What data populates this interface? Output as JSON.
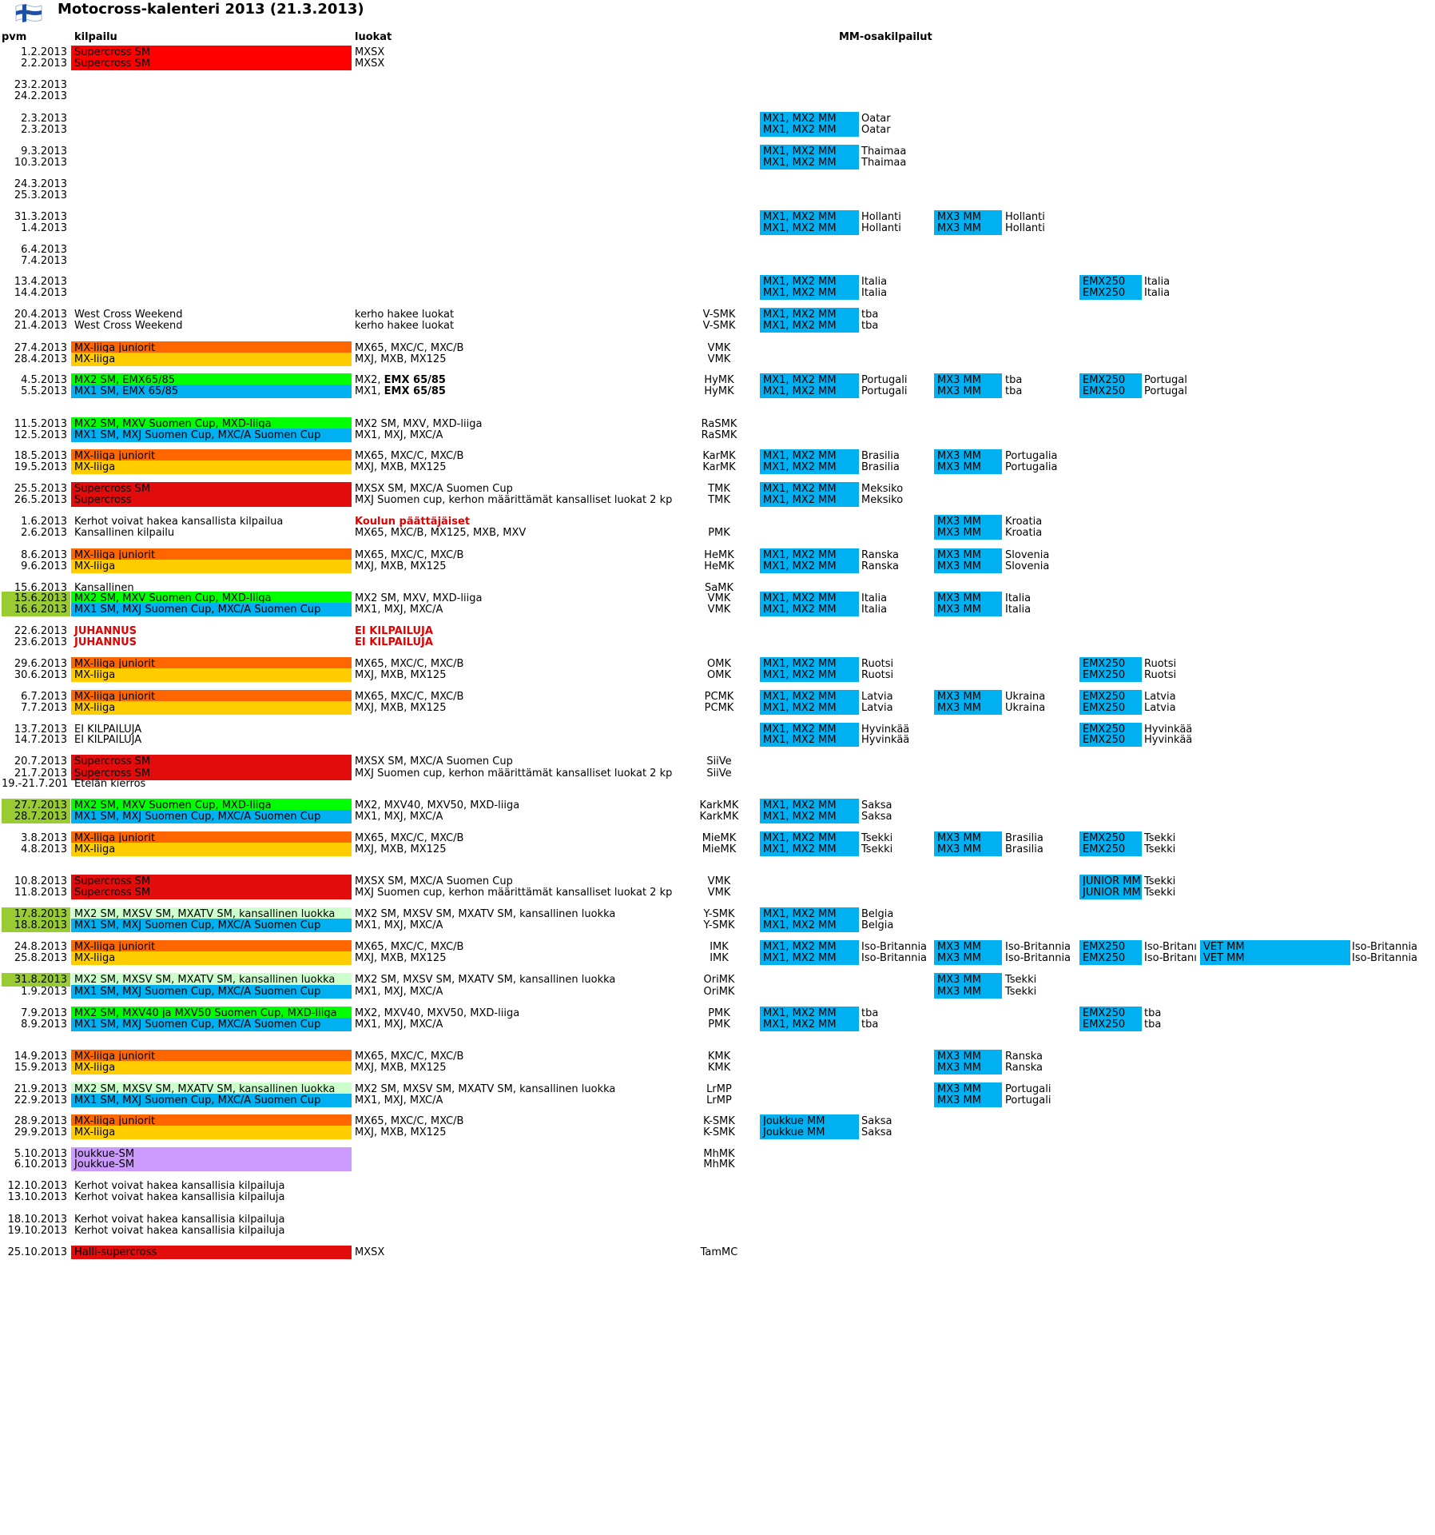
{
  "title": "Motocross-kalenteri 2013 (21.3.2013)",
  "headers": {
    "pvm": "pvm",
    "kilpailu": "kilpailu",
    "luokat": "luokat",
    "mm": "MM-osakilpailut"
  },
  "colors": {
    "supercross": "#ff0000",
    "supercross_dark": "#e30c0c",
    "juniorit": "#ff6600",
    "mxliiga": "#ffcc00",
    "green": "#00ff00",
    "blue": "#00b0f0",
    "mm": "#00b0f0",
    "lightgreen": "#ccffcc",
    "datelime": "#99cc33",
    "purple": "#cc99ff"
  },
  "rows": [
    {
      "date": "1.2.2013",
      "comp": "Supercross SM",
      "comp_color": "supercross",
      "classes": "MXSX"
    },
    {
      "date": "2.2.2013",
      "comp": "Supercross SM",
      "comp_color": "supercross",
      "classes": "MXSX"
    },
    {
      "date": "23.2.2013"
    },
    {
      "date": "24.2.2013"
    },
    {
      "date": "2.3.2013",
      "mm1": "MX1, MX2 MM",
      "mm1c": "Oatar"
    },
    {
      "date": "2.3.2013",
      "mm1": "MX1, MX2 MM",
      "mm1c": "Oatar"
    },
    {
      "date": "9.3.2013",
      "mm1": "MX1, MX2 MM",
      "mm1c": "Thaimaa"
    },
    {
      "date": "10.3.2013",
      "mm1": "MX1, MX2 MM",
      "mm1c": "Thaimaa"
    },
    {
      "date": "24.3.2013"
    },
    {
      "date": "25.3.2013"
    },
    {
      "date": "31.3.2013",
      "mm1": "MX1, MX2 MM",
      "mm1c": "Hollanti",
      "mm2": "MX3 MM",
      "mm2c": "Hollanti"
    },
    {
      "date": "1.4.2013",
      "mm1": "MX1, MX2 MM",
      "mm1c": "Hollanti",
      "mm2": "MX3 MM",
      "mm2c": "Hollanti"
    },
    {
      "date": "6.4.2013"
    },
    {
      "date": "7.4.2013"
    },
    {
      "date": "13.4.2013",
      "mm1": "MX1, MX2 MM",
      "mm1c": "Italia",
      "mm3": "EMX250",
      "mm3c": "Italia"
    },
    {
      "date": "14.4.2013",
      "mm1": "MX1, MX2 MM",
      "mm1c": "Italia",
      "mm3": "EMX250",
      "mm3c": "Italia"
    },
    {
      "date": "20.4.2013",
      "comp": "West Cross Weekend",
      "classes": "kerho hakee luokat",
      "club": "V-SMK",
      "mm1": "MX1, MX2 MM",
      "mm1c": "tba"
    },
    {
      "date": "21.4.2013",
      "comp": "West Cross Weekend",
      "classes": "kerho hakee luokat",
      "club": "V-SMK",
      "mm1": "MX1, MX2 MM",
      "mm1c": "tba"
    },
    {
      "date": "27.4.2013",
      "comp": "MX-liiga juniorit",
      "comp_color": "juniorit",
      "classes": "MX65, MXC/C, MXC/B",
      "club": "VMK"
    },
    {
      "date": "28.4.2013",
      "comp": "MX-liiga",
      "comp_color": "mxliiga",
      "classes": "MXJ, MXB, MX125",
      "club": "VMK"
    },
    {
      "date": "4.5.2013",
      "comp": "MX2 SM, EMX65/85",
      "comp_color": "green",
      "classes": "MX2,",
      "classes_bold": "EMX 65/85",
      "club": "HyMK",
      "mm1": "MX1, MX2 MM",
      "mm1c": "Portugali",
      "mm2": "MX3 MM",
      "mm2c": "tba",
      "mm3": "EMX250",
      "mm3c": "Portugal"
    },
    {
      "date": "5.5.2013",
      "comp": "MX1 SM, EMX 65/85",
      "comp_color": "blue",
      "classes": "MX1,",
      "classes_bold": "EMX 65/85",
      "club": "HyMK",
      "mm1": "MX1, MX2 MM",
      "mm1c": "Portugali",
      "mm2": "MX3 MM",
      "mm2c": "tba",
      "mm3": "EMX250",
      "mm3c": "Portugal"
    },
    {
      "date": "11.5.2013",
      "comp": "MX2 SM, MXV Suomen Cup, MXD-liiga",
      "comp_color": "green",
      "classes": "MX2 SM, MXV, MXD-liiga",
      "club": "RaSMK"
    },
    {
      "date": "12.5.2013",
      "comp": "MX1 SM, MXJ Suomen Cup, MXC/A Suomen Cup",
      "comp_color": "blue",
      "classes": "MX1, MXJ, MXC/A",
      "club": "RaSMK"
    },
    {
      "date": "18.5.2013",
      "comp": "MX-liiga juniorit",
      "comp_color": "juniorit",
      "classes": "MX65, MXC/C, MXC/B",
      "club": "KarMK",
      "mm1": "MX1, MX2 MM",
      "mm1c": "Brasilia",
      "mm2": "MX3 MM",
      "mm2c": "Portugalia"
    },
    {
      "date": "19.5.2013",
      "comp": "MX-liiga",
      "comp_color": "mxliiga",
      "classes": "MXJ, MXB, MX125",
      "club": "KarMK",
      "mm1": "MX1, MX2 MM",
      "mm1c": "Brasilia",
      "mm2": "MX3 MM",
      "mm2c": "Portugalia"
    },
    {
      "date": "25.5.2013",
      "comp": "Supercross SM",
      "comp_color": "supercross_dark",
      "classes": "MXSX SM, MXC/A Suomen Cup",
      "club": "TMK",
      "mm1": "MX1, MX2 MM",
      "mm1c": "Meksiko"
    },
    {
      "date": "26.5.2013",
      "comp": "Supercross",
      "comp_color": "supercross_dark",
      "classes": "MXJ Suomen cup, kerhon määrittämät kansalliset luokat 2 kp",
      "club": "TMK",
      "mm1": "MX1, MX2 MM",
      "mm1c": "Meksiko"
    },
    {
      "date": "1.6.2013",
      "comp": "Kerhot voivat hakea kansallista kilpailua",
      "classes_red": "Koulun päättäjäiset",
      "mm2": "MX3 MM",
      "mm2c": "Kroatia"
    },
    {
      "date": "2.6.2013",
      "comp": "Kansallinen kilpailu",
      "classes": "MX65, MXC/B, MX125, MXB, MXV",
      "club": "PMK",
      "mm2": "MX3 MM",
      "mm2c": "Kroatia"
    },
    {
      "date": "8.6.2013",
      "comp": "MX-liiga juniorit",
      "comp_color": "juniorit",
      "classes": "MX65, MXC/C, MXC/B",
      "club": "HeMK",
      "mm1": "MX1, MX2 MM",
      "mm1c": "Ranska",
      "mm2": "MX3 MM",
      "mm2c": "Slovenia"
    },
    {
      "date": "9.6.2013",
      "comp": "MX-liiga",
      "comp_color": "mxliiga",
      "classes": "MXJ, MXB, MX125",
      "club": "HeMK",
      "mm1": "MX1, MX2 MM",
      "mm1c": "Ranska",
      "mm2": "MX3 MM",
      "mm2c": "Slovenia"
    },
    {
      "date": "15.6.2013",
      "comp": "Kansallinen",
      "club": "SaMK"
    },
    {
      "date": "15.6.2013",
      "date_color": "datelime",
      "comp": "MX2 SM, MXV Suomen Cup, MXD-liiga",
      "comp_color": "green",
      "classes": "MX2 SM, MXV, MXD-liiga",
      "club": "VMK",
      "mm1": "MX1, MX2 MM",
      "mm1c": "Italia",
      "mm2": "MX3 MM",
      "mm2c": "Italia"
    },
    {
      "date": "16.6.2013",
      "date_color": "datelime",
      "comp": "MX1 SM, MXJ Suomen Cup, MXC/A Suomen Cup",
      "comp_color": "blue",
      "classes": "MX1, MXJ, MXC/A",
      "club": "VMK",
      "mm1": "MX1, MX2 MM",
      "mm1c": "Italia",
      "mm2": "MX3 MM",
      "mm2c": "Italia"
    },
    {
      "date": "22.6.2013",
      "comp_red": "JUHANNUS",
      "classes_red": "EI KILPAILUJA"
    },
    {
      "date": "23.6.2013",
      "comp_red": "JUHANNUS",
      "classes_red": "EI KILPAILUJA"
    },
    {
      "date": "29.6.2013",
      "comp": "MX-liiga juniorit",
      "comp_color": "juniorit",
      "classes": "MX65, MXC/C, MXC/B",
      "club": "OMK",
      "mm1": "MX1, MX2 MM",
      "mm1c": "Ruotsi",
      "mm3": "EMX250",
      "mm3c": "Ruotsi"
    },
    {
      "date": "30.6.2013",
      "comp": "MX-liiga",
      "comp_color": "mxliiga",
      "classes": "MXJ, MXB, MX125",
      "club": "OMK",
      "mm1": "MX1, MX2 MM",
      "mm1c": "Ruotsi",
      "mm3": "EMX250",
      "mm3c": "Ruotsi"
    },
    {
      "date": "6.7.2013",
      "comp": "MX-liiga juniorit",
      "comp_color": "juniorit",
      "classes": "MX65, MXC/C, MXC/B",
      "club": "PCMK",
      "mm1": "MX1, MX2 MM",
      "mm1c": "Latvia",
      "mm2": "MX3 MM",
      "mm2c": "Ukraina",
      "mm3": "EMX250",
      "mm3c": "Latvia"
    },
    {
      "date": "7.7.2013",
      "comp": "MX-liiga",
      "comp_color": "mxliiga",
      "classes": "MXJ, MXB, MX125",
      "club": "PCMK",
      "mm1": "MX1, MX2 MM",
      "mm1c": "Latvia",
      "mm2": "MX3 MM",
      "mm2c": "Ukraina",
      "mm3": "EMX250",
      "mm3c": "Latvia"
    },
    {
      "date": "13.7.2013",
      "comp": "EI KILPAILUJA",
      "mm1": "MX1, MX2 MM",
      "mm1c": "Hyvinkää",
      "mm3": "EMX250",
      "mm3c": "Hyvinkää"
    },
    {
      "date": "14.7.2013",
      "comp": "EI KILPAILUJA",
      "mm1": "MX1, MX2 MM",
      "mm1c": "Hyvinkää",
      "mm3": "EMX250",
      "mm3c": "Hyvinkää"
    },
    {
      "date": "20.7.2013",
      "comp": "Supercross SM",
      "comp_color": "supercross_dark",
      "classes": "MXSX SM, MXC/A Suomen Cup",
      "club": "SiiVe"
    },
    {
      "date": "21.7.2013",
      "comp": "Supercross SM",
      "comp_color": "supercross_dark",
      "classes": "MXJ Suomen cup, kerhon määrittämät kansalliset luokat 2 kp",
      "club": "SiiVe"
    },
    {
      "date": "19.-21.7.201",
      "comp": "Etelän kierros"
    },
    {
      "date": "27.7.2013",
      "date_color": "datelime",
      "comp": "MX2 SM, MXV Suomen Cup, MXD-liiga",
      "comp_color": "green",
      "classes": "MX2, MXV40, MXV50, MXD-liiga",
      "club": "KarkMK",
      "mm1": "MX1, MX2 MM",
      "mm1c": "Saksa"
    },
    {
      "date": "28.7.2013",
      "date_color": "datelime",
      "comp": "MX1 SM, MXJ Suomen Cup, MXC/A Suomen Cup",
      "comp_color": "blue",
      "classes": "MX1, MXJ, MXC/A",
      "club": "KarkMK",
      "mm1": "MX1, MX2 MM",
      "mm1c": "Saksa"
    },
    {
      "date": "3.8.2013",
      "comp": "MX-liiga juniorit",
      "comp_color": "juniorit",
      "classes": "MX65, MXC/C, MXC/B",
      "club": "MieMK",
      "mm1": "MX1, MX2 MM",
      "mm1c": "Tsekki",
      "mm2": "MX3 MM",
      "mm2c": "Brasilia",
      "mm3": "EMX250",
      "mm3c": "Tsekki"
    },
    {
      "date": "4.8.2013",
      "comp": "MX-liiga",
      "comp_color": "mxliiga",
      "classes": "MXJ, MXB, MX125",
      "club": "MieMK",
      "mm1": "MX1, MX2 MM",
      "mm1c": "Tsekki",
      "mm2": "MX3 MM",
      "mm2c": "Brasilia",
      "mm3": "EMX250",
      "mm3c": "Tsekki"
    },
    {
      "date": "10.8.2013",
      "comp": "Supercross SM",
      "comp_color": "supercross_dark",
      "classes": "MXSX SM, MXC/A Suomen Cup",
      "club": "VMK",
      "mm3": "JUNIOR MM",
      "mm3c": "Tsekki"
    },
    {
      "date": "11.8.2013",
      "comp": "Supercross SM",
      "comp_color": "supercross_dark",
      "classes": "MXJ Suomen cup, kerhon määrittämät kansalliset luokat 2 kp",
      "club": "VMK",
      "mm3": "JUNIOR MM",
      "mm3c": "Tsekki"
    },
    {
      "date": "17.8.2013",
      "date_color": "datelime",
      "comp": "MX2 SM, MXSV SM, MXATV SM, kansallinen luokka",
      "comp_color": "lightgreen",
      "classes": "MX2 SM, MXSV SM, MXATV SM, kansallinen luokka",
      "club": "Y-SMK",
      "mm1": "MX1, MX2 MM",
      "mm1c": "Belgia"
    },
    {
      "date": "18.8.2013",
      "date_color": "datelime",
      "comp": "MX1 SM, MXJ Suomen Cup, MXC/A Suomen Cup",
      "comp_color": "blue",
      "classes": "MX1, MXJ, MXC/A",
      "club": "Y-SMK",
      "mm1": "MX1, MX2 MM",
      "mm1c": "Belgia"
    },
    {
      "date": "24.8.2013",
      "comp": "MX-liiga juniorit",
      "comp_color": "juniorit",
      "classes": "MX65, MXC/C, MXC/B",
      "club": "IMK",
      "mm1": "MX1, MX2 MM",
      "mm1c": "Iso-Britannia",
      "mm2": "MX3 MM",
      "mm2c": "Iso-Britannia",
      "mm3": "EMX250",
      "mm3c": "Iso-Britanı",
      "mm4": "VET MM",
      "mm4c": "Iso-Britannia"
    },
    {
      "date": "25.8.2013",
      "comp": "MX-liiga",
      "comp_color": "mxliiga",
      "classes": "MXJ, MXB, MX125",
      "club": "IMK",
      "mm1": "MX1, MX2 MM",
      "mm1c": "Iso-Britannia",
      "mm2": "MX3 MM",
      "mm2c": "Iso-Britannia",
      "mm3": "EMX250",
      "mm3c": "Iso-Britanı",
      "mm4": "VET MM",
      "mm4c": "Iso-Britannia"
    },
    {
      "date": "31.8.2013",
      "date_color": "datelime",
      "comp": "MX2 SM, MXSV SM, MXATV SM, kansallinen luokka",
      "comp_color": "lightgreen",
      "classes": "MX2 SM, MXSV SM, MXATV SM, kansallinen luokka",
      "club": "OriMK",
      "mm2": "MX3 MM",
      "mm2c": "Tsekki"
    },
    {
      "date": "1.9.2013",
      "comp": "MX1 SM, MXJ Suomen Cup, MXC/A Suomen Cup",
      "comp_color": "blue",
      "classes": "MX1, MXJ, MXC/A",
      "club": "OriMK",
      "mm2": "MX3 MM",
      "mm2c": "Tsekki"
    },
    {
      "date": "7.9.2013",
      "comp": "MX2 SM, MXV40 ja MXV50 Suomen Cup, MXD-liiga",
      "comp_color": "green",
      "classes": "MX2, MXV40, MXV50, MXD-liiga",
      "club": "PMK",
      "mm1": "MX1, MX2 MM",
      "mm1c": "tba",
      "mm3": "EMX250",
      "mm3c": "tba"
    },
    {
      "date": "8.9.2013",
      "comp": "MX1 SM, MXJ Suomen Cup, MXC/A Suomen Cup",
      "comp_color": "blue",
      "classes": "MX1, MXJ, MXC/A",
      "club": "PMK",
      "mm1": "MX1, MX2 MM",
      "mm1c": "tba",
      "mm3": "EMX250",
      "mm3c": "tba"
    },
    {
      "date": "14.9.2013",
      "comp": "MX-liiga juniorit",
      "comp_color": "juniorit",
      "classes": "MX65, MXC/C, MXC/B",
      "club": "KMK",
      "mm2": "MX3 MM",
      "mm2c": "Ranska"
    },
    {
      "date": "15.9.2013",
      "comp": "MX-liiga",
      "comp_color": "mxliiga",
      "classes": "MXJ, MXB, MX125",
      "club": "KMK",
      "mm2": "MX3 MM",
      "mm2c": "Ranska"
    },
    {
      "date": "21.9.2013",
      "comp": "MX2 SM, MXSV SM, MXATV SM, kansallinen luokka",
      "comp_color": "lightgreen",
      "classes": "MX2 SM, MXSV SM, MXATV SM, kansallinen luokka",
      "club": "LrMP",
      "mm2": "MX3 MM",
      "mm2c": "Portugali"
    },
    {
      "date": "22.9.2013",
      "comp": "MX1 SM, MXJ Suomen Cup, MXC/A Suomen Cup",
      "comp_color": "blue",
      "classes": "MX1, MXJ, MXC/A",
      "club": "LrMP",
      "mm2": "MX3 MM",
      "mm2c": "Portugali"
    },
    {
      "date": "28.9.2013",
      "comp": "MX-liiga juniorit",
      "comp_color": "juniorit",
      "classes": "MX65, MXC/C, MXC/B",
      "club": "K-SMK",
      "mm1": "Joukkue MM",
      "mm1c": "Saksa"
    },
    {
      "date": "29.9.2013",
      "comp": "MX-liiga",
      "comp_color": "mxliiga",
      "classes": "MXJ, MXB, MX125",
      "club": "K-SMK",
      "mm1": "Joukkue MM",
      "mm1c": "Saksa"
    },
    {
      "date": "5.10.2013",
      "comp": "Joukkue-SM",
      "comp_color": "purple",
      "club": "MhMK"
    },
    {
      "date": "6.10.2013",
      "comp": "Joukkue-SM",
      "comp_color": "purple",
      "club": "MhMK"
    },
    {
      "date": "12.10.2013",
      "comp": "Kerhot voivat hakea kansallisia kilpailuja"
    },
    {
      "date": "13.10.2013",
      "comp": "Kerhot voivat hakea kansallisia kilpailuja"
    },
    {
      "date": "18.10.2013",
      "comp": "Kerhot voivat hakea kansallisia kilpailuja"
    },
    {
      "date": "19.10.2013",
      "comp": "Kerhot voivat hakea kansallisia kilpailuja"
    },
    {
      "date": "25.10.2013",
      "comp": "Halli-supercross",
      "comp_color": "supercross_dark",
      "classes": "MXSX",
      "club": "TamMC"
    }
  ]
}
